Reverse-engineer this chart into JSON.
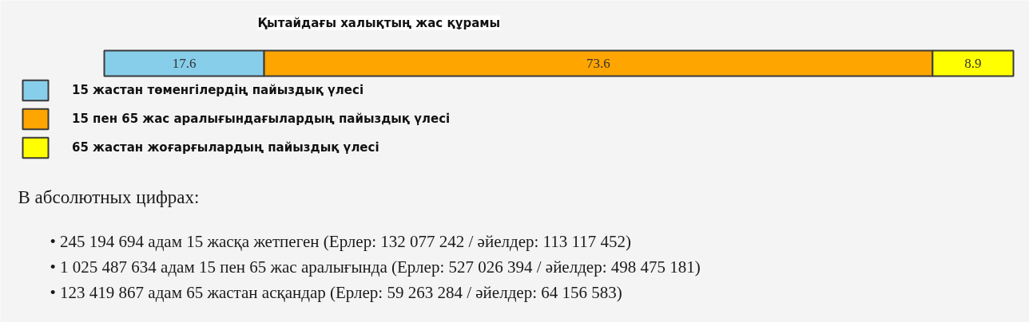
{
  "chart_data": {
    "type": "bar",
    "title": "Қытайдағы халықтың жас құрамы",
    "categories": [
      null
    ],
    "orientation": "horizontal",
    "stacked": true,
    "series": [
      {
        "name": "15 жастан төменгілердің пайыздық үлесі",
        "color": "#87ceeb",
        "values": [
          17.6
        ]
      },
      {
        "name": "15 пен 65 жас аралығындағылардың пайыздық үлесі",
        "color": "#ffa500",
        "values": [
          73.6
        ]
      },
      {
        "name": "65 жастан жоғарғылардың пайыздық үлесі",
        "color": "#ffff00",
        "values": [
          8.9
        ]
      }
    ],
    "data_labels": true,
    "legend": "bottom left",
    "annotations": [
      "В абсолютных цифрах:",
      "• 245 194 694 адам 15 жасқа жетпеген (Ерлер: 132 077 242 / әйелдер: 113 117 452)",
      "• 1 025 487 634 адам 15 пен 65 жас аралығында (Ерлер: 527 026 394 / әйелдер: 498 475 181)",
      "• 123 419 867 адам 65 жастан асқандар (Ерлер: 59 263 284 / әйелдер: 64 156 583)"
    ]
  }
}
